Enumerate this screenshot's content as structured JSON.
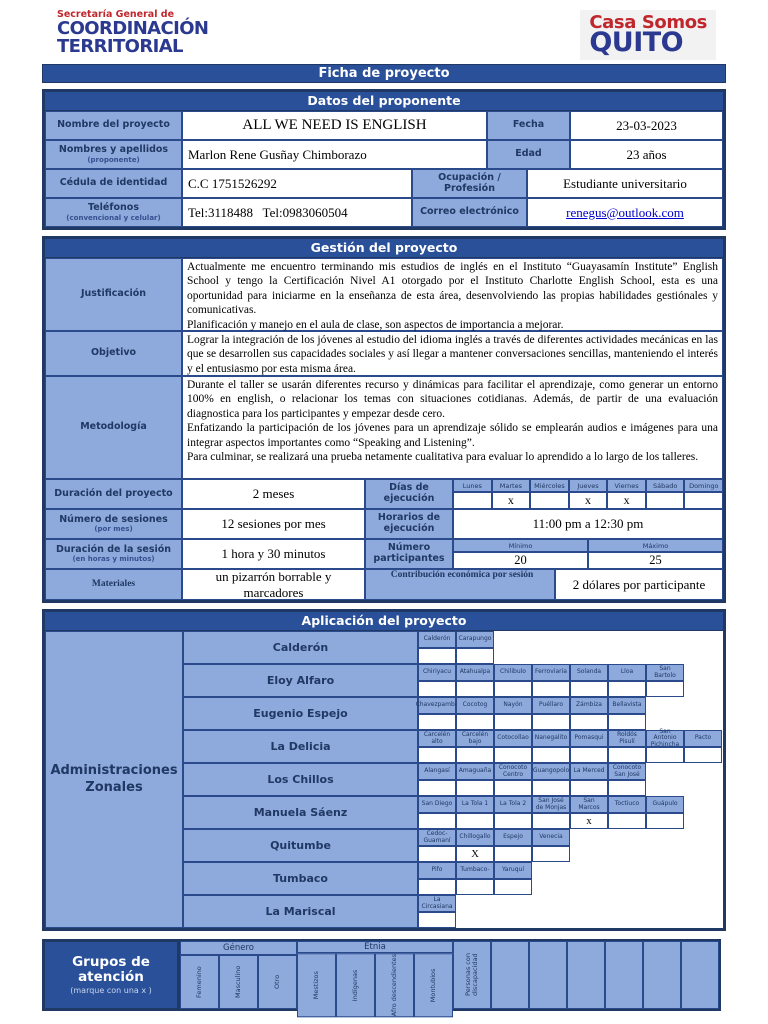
{
  "colors": {
    "accent_blue": "#2a5099",
    "label_blue": "#8ea9db",
    "border_navy": "#1f3864",
    "logo_red": "#c0272d",
    "logo_navy": "#2b3990",
    "link_blue": "#0000cc"
  },
  "header": {
    "logo_left": {
      "line1": "Secretaría General de",
      "line2": "COORDINACIÓN",
      "line3": "TERRITORIAL"
    },
    "logo_right": {
      "line1": "Casa Somos",
      "line2": "QUITO"
    },
    "title": "Ficha de proyecto"
  },
  "proponente": {
    "section_title": "Datos del proponente",
    "project": {
      "label": "Nombre del proyecto",
      "value": "ALL WE NEED IS ENGLISH",
      "label2": "Fecha",
      "value2": "23-03-2023"
    },
    "names": {
      "label": "Nombres y apellidos",
      "sublabel": "(proponente)",
      "value": "Marlon Rene Gusñay Chimborazo",
      "label2": "Edad",
      "value2": "23 años"
    },
    "cedula": {
      "label": "Cédula de identidad",
      "value": "C.C 1751526292",
      "label2": "Ocupación / Profesión",
      "value2": "Estudiante universitario"
    },
    "telefonos": {
      "label": "Teléfonos",
      "sublabel": "(convencional y celular)",
      "value": "Tel:3118488   Tel:0983060504",
      "label2": "Correo electrónico",
      "value2": "renegus@outlook.com"
    }
  },
  "gestion": {
    "section_title": "Gestión del proyecto",
    "justificacion": {
      "label": "Justificación",
      "text": "Actualmente me encuentro terminando mis estudios de inglés en el Instituto “Guayasamín Institute” English School y tengo la Certificación Nivel A1 otorgado por el Instituto Charlotte English School, esta es una oportunidad para iniciarme en la enseñanza de esta área, desenvolviendo las propias habilidades gestiónales y comunicativas.\nPlanificación y manejo en el aula de clase, son aspectos de importancia a mejorar."
    },
    "objetivo": {
      "label": "Objetivo",
      "text": "Lograr la integración de los jóvenes al estudio del idioma inglés a través de diferentes actividades mecánicas en las que se desarrollen sus capacidades sociales y así llegar a mantener conversaciones sencillas, manteniendo el interés y el entusiasmo por esta misma área."
    },
    "metodologia": {
      "label": "Metodología",
      "text": "Durante el taller se usarán diferentes recurso y dinámicas para facilitar el aprendizaje, como generar un entorno 100% en english, o relacionar los temas con situaciones cotidianas. Además, de partir de una evaluación diagnostica para los participantes y empezar desde cero.\nEnfatizando la participación de los jóvenes para un aprendizaje sólido se emplearán audios e imágenes para una integrar aspectos importantes como “Speaking and Listening”.\nPara culminar, se realizará una prueba netamente cualitativa para evaluar lo aprendido a lo largo de los talleres."
    },
    "duracion": {
      "label": "Duración del proyecto",
      "value": "2 meses",
      "label2": "Días de ejecución"
    },
    "dias": {
      "days": [
        {
          "label": "Lunes",
          "mark": ""
        },
        {
          "label": "Martes",
          "mark": "x"
        },
        {
          "label": "Miércoles",
          "mark": ""
        },
        {
          "label": "Jueves",
          "mark": "x"
        },
        {
          "label": "Viernes",
          "mark": "x"
        },
        {
          "label": "Sábado",
          "mark": ""
        },
        {
          "label": "Domingo",
          "mark": ""
        }
      ]
    },
    "sesiones": {
      "label": "Número de sesiones",
      "sublabel": "(por mes)",
      "value": "12 sesiones por mes",
      "label2": "Horarios de ejecución",
      "value2": "11:00 pm a 12:30 pm"
    },
    "duracion_sesion": {
      "label": "Duración de la sesión",
      "sublabel": "(en horas y minutos)",
      "value": "1 hora y 30 minutos",
      "label2": "Número participantes",
      "min_label": "Mínimo",
      "max_label": "Máximo",
      "min": "20",
      "max": "25"
    },
    "materiales": {
      "label": "Materiales",
      "value": "un pizarrón borrable y marcadores",
      "label2": "Contribución económica por sesión",
      "value2": "2 dólares por participante"
    }
  },
  "aplicacion": {
    "section_title": "Aplicación del proyecto",
    "left_label": "Administraciones\nZonales",
    "zones": [
      {
        "name": "Calderón",
        "barrios": [
          {
            "label": "Calderón",
            "mark": ""
          },
          {
            "label": "Carapungo",
            "mark": ""
          }
        ]
      },
      {
        "name": "Eloy Alfaro",
        "barrios": [
          {
            "label": "Chiriyacu",
            "mark": ""
          },
          {
            "label": "Atahualpa",
            "mark": ""
          },
          {
            "label": "Chilibulo",
            "mark": ""
          },
          {
            "label": "Ferroviaria",
            "mark": ""
          },
          {
            "label": "Solanda",
            "mark": ""
          },
          {
            "label": "Lloa",
            "mark": ""
          },
          {
            "label": "San Bartolo",
            "mark": ""
          }
        ]
      },
      {
        "name": "Eugenio Espejo",
        "barrios": [
          {
            "label": "Chavezpamba",
            "mark": ""
          },
          {
            "label": "Cocotog",
            "mark": ""
          },
          {
            "label": "Nayón",
            "mark": ""
          },
          {
            "label": "Puéllaro",
            "mark": ""
          },
          {
            "label": "Zámbiza",
            "mark": ""
          },
          {
            "label": "Bellavista",
            "mark": ""
          }
        ]
      },
      {
        "name": "La Delicia",
        "barrios": [
          {
            "label": "Carcelén alto",
            "mark": ""
          },
          {
            "label": "Carcelén bajo",
            "mark": ""
          },
          {
            "label": "Cotocollao",
            "mark": ""
          },
          {
            "label": "Nanegalito",
            "mark": ""
          },
          {
            "label": "Pomasqui",
            "mark": ""
          },
          {
            "label": "Roldós Pisulí",
            "mark": ""
          },
          {
            "label": "San Antonio Pichincha",
            "mark": ""
          },
          {
            "label": "Pacto",
            "mark": ""
          }
        ]
      },
      {
        "name": "Los Chillos",
        "barrios": [
          {
            "label": "Alangasí",
            "mark": ""
          },
          {
            "label": "Amaguaña",
            "mark": ""
          },
          {
            "label": "Conocoto Centro",
            "mark": ""
          },
          {
            "label": "Guangopolo",
            "mark": ""
          },
          {
            "label": "La Merced",
            "mark": ""
          },
          {
            "label": "Conocoto San José",
            "mark": ""
          }
        ]
      },
      {
        "name": "Manuela Sáenz",
        "barrios": [
          {
            "label": "San Diego",
            "mark": ""
          },
          {
            "label": "La Tola 1",
            "mark": ""
          },
          {
            "label": "La Tola 2",
            "mark": ""
          },
          {
            "label": "San José de Monjas",
            "mark": ""
          },
          {
            "label": "San Marcos",
            "mark": "x"
          },
          {
            "label": "Toctiuco",
            "mark": ""
          },
          {
            "label": "Guápulo",
            "mark": ""
          }
        ]
      },
      {
        "name": "Quitumbe",
        "barrios": [
          {
            "label": "Cedoc-Guamaní",
            "mark": ""
          },
          {
            "label": "Chillogallo",
            "mark": "X"
          },
          {
            "label": "Espejo",
            "mark": ""
          },
          {
            "label": "Venecia",
            "mark": ""
          }
        ]
      },
      {
        "name": "Tumbaco",
        "barrios": [
          {
            "label": "Pifo",
            "mark": ""
          },
          {
            "label": "Tumbaco-",
            "mark": ""
          },
          {
            "label": "Yaruquí",
            "mark": ""
          }
        ]
      },
      {
        "name": "La Mariscal",
        "barrios": [
          {
            "label": "La Circasiana",
            "mark": ""
          }
        ]
      }
    ]
  },
  "grupos": {
    "title": "Grupos de atención",
    "subtitle": "(marque con una x )",
    "groups": [
      {
        "title": "Género",
        "cols": [
          "Femenino",
          "Masculino",
          "Otro"
        ]
      },
      {
        "title": "Etnia",
        "cols": [
          "Mestizos",
          "Indígenas",
          "Afro descendientes",
          "Montubios"
        ]
      }
    ],
    "tall_col": "Personas con discapacidad",
    "empty_count": 6
  }
}
